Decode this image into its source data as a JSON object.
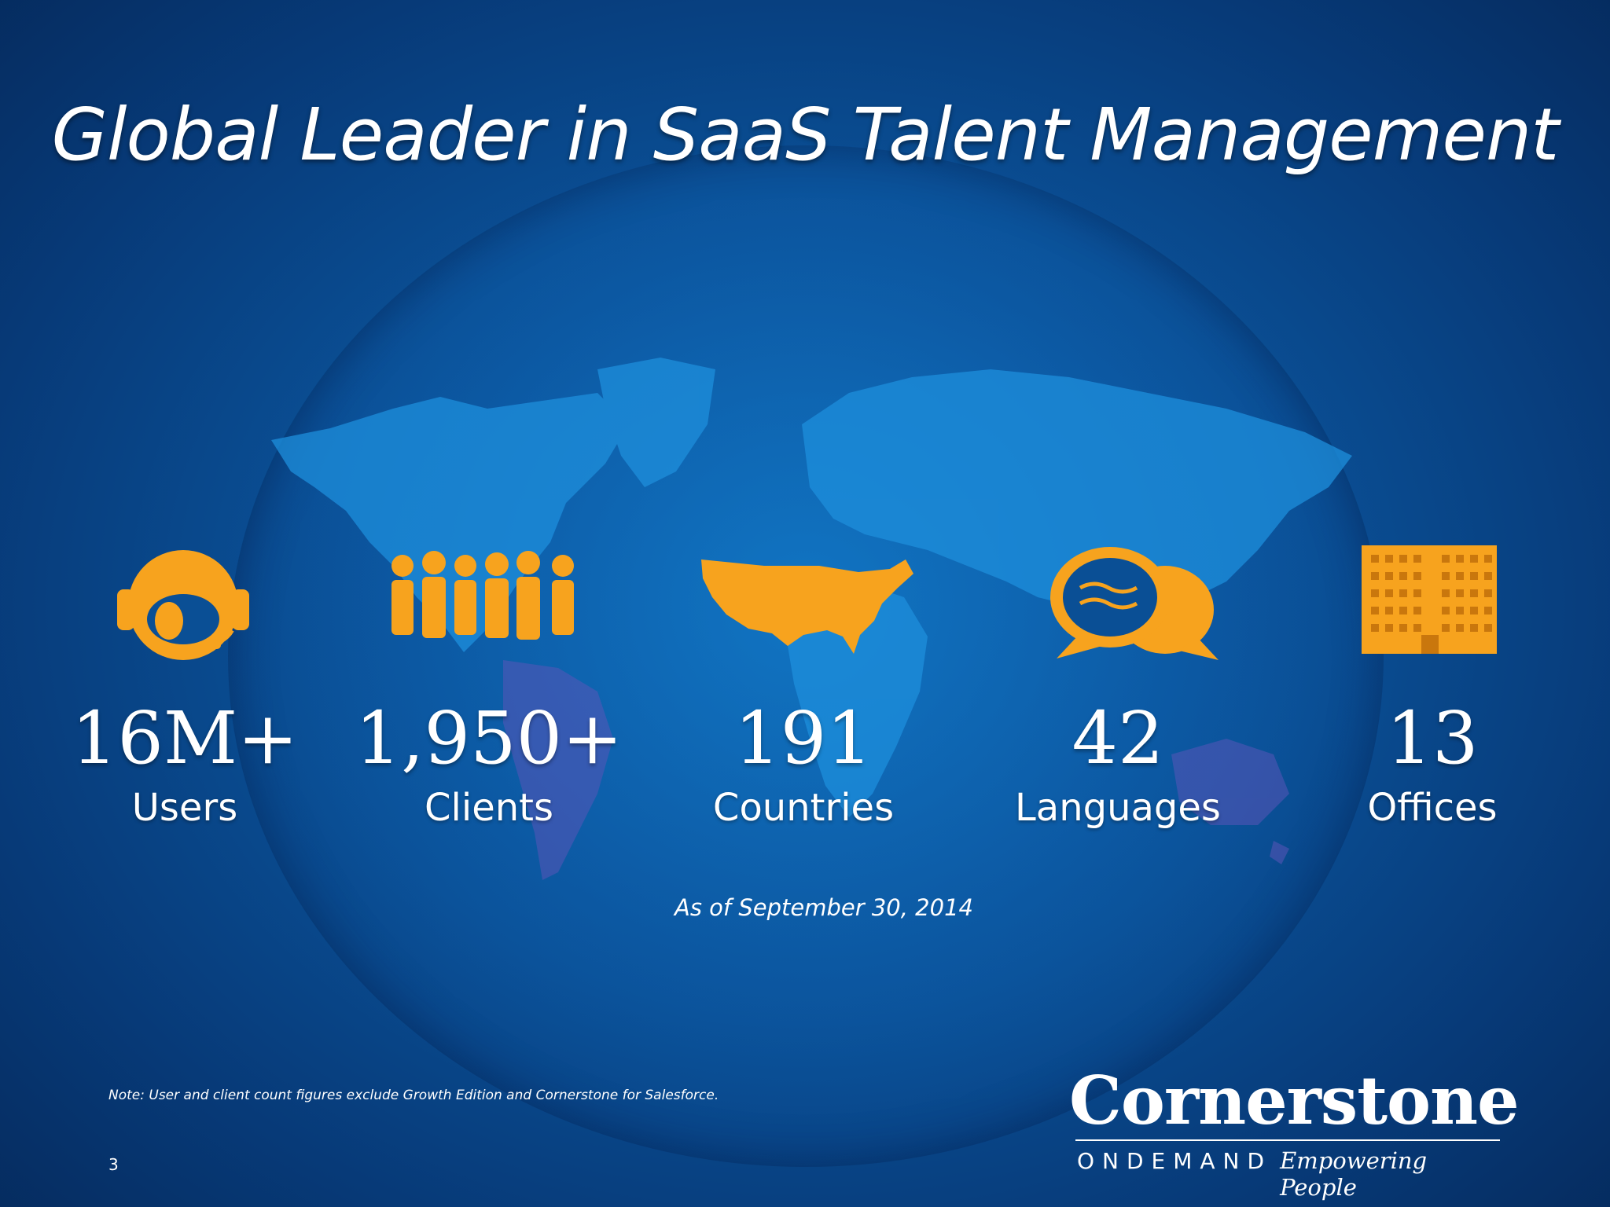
{
  "slide": {
    "title": "Global Leader in SaaS Talent Management",
    "stats": [
      {
        "value": "16M+",
        "label": "Users",
        "icon": "headset-user-icon"
      },
      {
        "value": "1,950+",
        "label": "Clients",
        "icon": "people-group-icon"
      },
      {
        "value": "191",
        "label": "Countries",
        "icon": "usa-map-icon"
      },
      {
        "value": "42",
        "label": "Languages",
        "icon": "speech-bubbles-icon"
      },
      {
        "value": "13",
        "label": "Offices",
        "icon": "office-building-icon"
      }
    ],
    "as_of": "As of September 30, 2014",
    "note": "Note: User and client count figures exclude Growth Edition and Cornerstone for Salesforce.",
    "page_number": "3",
    "brand": {
      "name": "Cornerstone",
      "sub": "ONDEMAND",
      "tagline": "Empowering People"
    },
    "colors": {
      "background": "#0a4f95",
      "accent": "#f7a31e",
      "text": "#ffffff"
    }
  }
}
